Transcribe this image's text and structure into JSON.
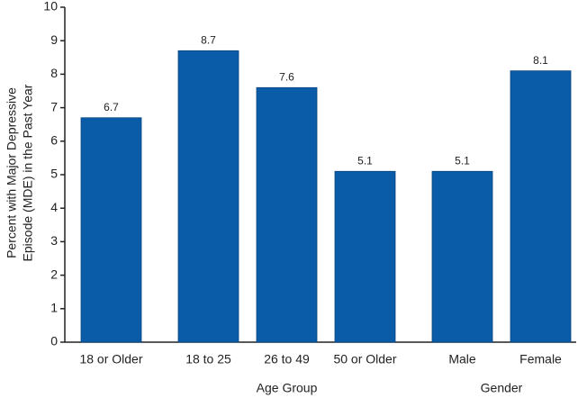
{
  "chart_data": {
    "type": "bar",
    "ylabel": [
      "Percent with Major Depressive",
      "Episode (MDE) in the Past Year"
    ],
    "groups": [
      {
        "label": null,
        "categories": [
          "18 or Older"
        ],
        "values": [
          6.7
        ]
      },
      {
        "label": "Age Group",
        "categories": [
          "18 to 25",
          "26 to 49",
          "50 or Older"
        ],
        "values": [
          8.7,
          7.6,
          5.1
        ]
      },
      {
        "label": "Gender",
        "categories": [
          "Male",
          "Female"
        ],
        "values": [
          5.1,
          8.1
        ]
      }
    ],
    "color": "#0a5ca8",
    "ylim": [
      0,
      10
    ],
    "yticks": [
      0,
      1,
      2,
      3,
      4,
      5,
      6,
      7,
      8,
      9,
      10
    ]
  }
}
